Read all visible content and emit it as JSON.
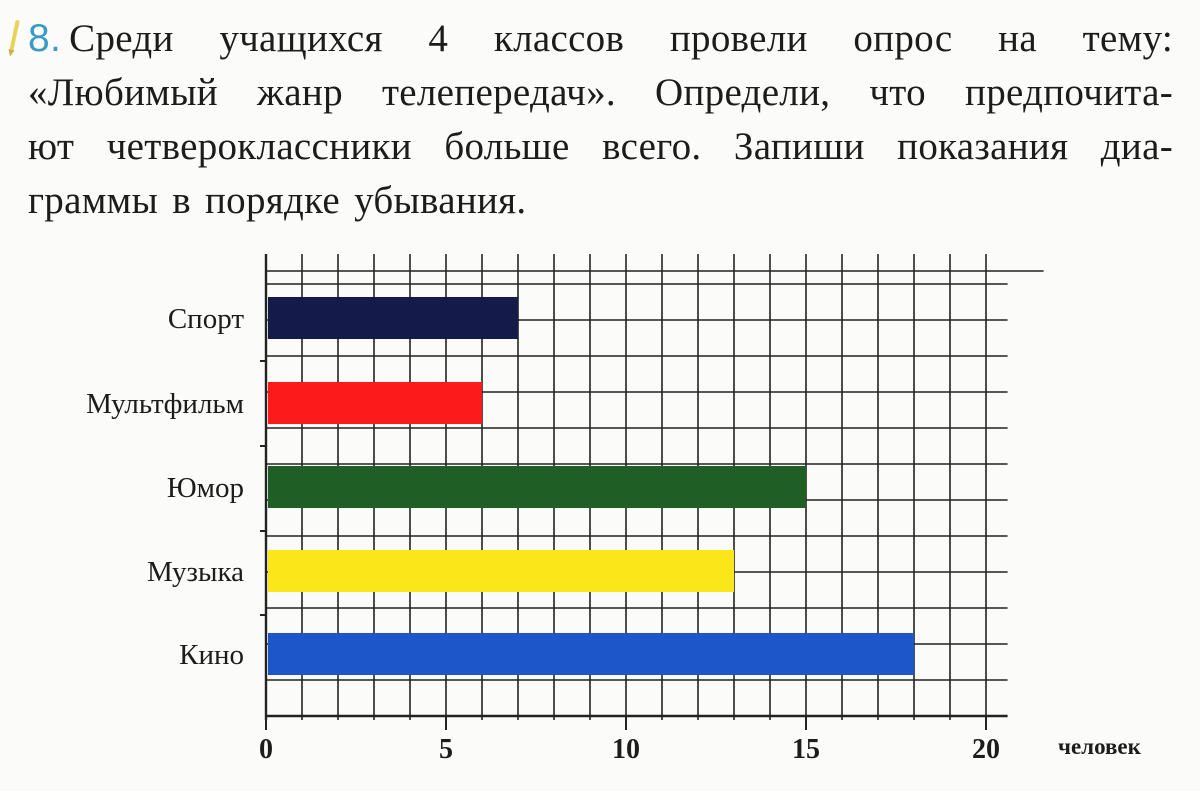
{
  "problem": {
    "number": "8.",
    "lines": [
      "Среди учащихся 4 классов провели опрос на тему:",
      "«Любимый жанр телепередач». Определи, что предпочита-",
      "ют четвероклассники больше всего. Запиши показания диа-",
      "граммы в порядке убывания."
    ]
  },
  "chart_data": {
    "type": "bar",
    "orientation": "horizontal",
    "categories": [
      "Спорт",
      "Мультфильм",
      "Юмор",
      "Музыка",
      "Кино"
    ],
    "values": [
      7,
      6,
      15,
      13,
      18
    ],
    "colors": [
      "#141a4a",
      "#fc1a1a",
      "#1f5e24",
      "#fbe619",
      "#1d56c8"
    ],
    "xlim": [
      0,
      20
    ],
    "x_ticks": [
      0,
      5,
      10,
      15,
      20
    ],
    "x_tick_labels": [
      "0",
      "5",
      "10",
      "15",
      "20"
    ],
    "xlabel": "человек",
    "grid": true
  }
}
